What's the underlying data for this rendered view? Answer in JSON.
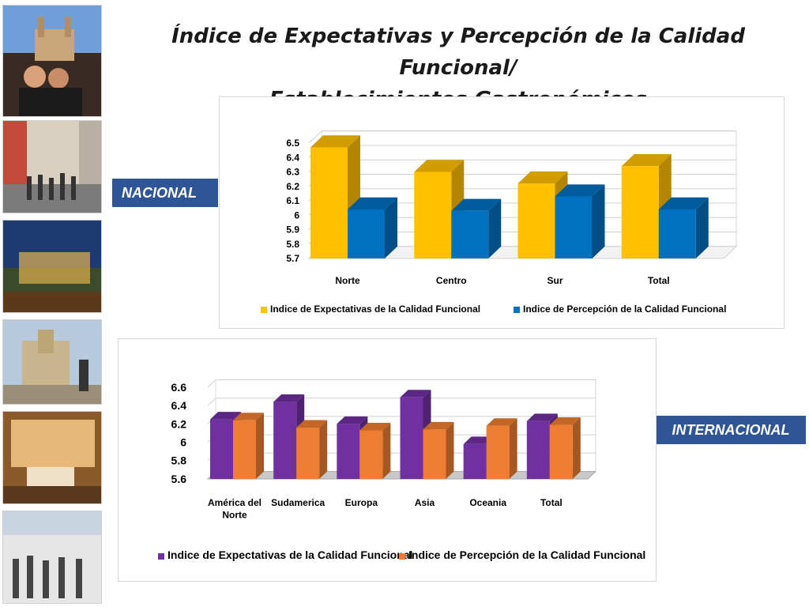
{
  "title": "Índice de Expectativas y Percepción de la Calidad Funcional/ Establecimientos Gastronómicos",
  "title_line1": "Índice de Expectativas y Percepción de la Calidad Funcional/",
  "title_line2": "Establecimientos Gastronómicos",
  "labels": {
    "nacional": "NACIONAL",
    "internacional": "INTERNACIONAL"
  },
  "colors": {
    "accent_label": "#2f5597",
    "series_nac_expect": "#ffc000",
    "series_nac_percep": "#0070c0",
    "series_int_expect": "#7030a0",
    "series_int_percep": "#ed7d31"
  },
  "sidebar_photos": [
    "cathedral-tourists-photo",
    "street-crowd-photo",
    "night-terrace-photo",
    "church-plaza-photo",
    "hotel-room-photo",
    "airport-travelers-photo"
  ],
  "chart_data": [
    {
      "type": "bar",
      "name": "nacional",
      "categories": [
        "Norte",
        "Centro",
        "Sur",
        "Total"
      ],
      "series": [
        {
          "name": "Indice de Expectativas de la Calidad Funcional",
          "values": [
            6.47,
            6.3,
            6.22,
            6.34
          ]
        },
        {
          "name": "Indice de Percepción de la Calidad Funcional",
          "values": [
            6.04,
            6.03,
            6.13,
            6.04
          ]
        }
      ],
      "yticks": [
        "6.5",
        "6.4",
        "6.3",
        "6.2",
        "6.1",
        "6",
        "5.9",
        "5.8",
        "5.7"
      ],
      "ylim": [
        5.7,
        6.5
      ],
      "grid": true,
      "legend": "bottom",
      "three_d": true
    },
    {
      "type": "bar",
      "name": "internacional",
      "categories": [
        "América del Norte",
        "Sudamerica",
        "Europa",
        "Asia",
        "Oceania",
        "Total"
      ],
      "category_lines": [
        [
          "América del",
          "Norte"
        ],
        [
          "Sudamerica"
        ],
        [
          "Europa"
        ],
        [
          "Asia"
        ],
        [
          "Oceania"
        ],
        [
          "Total"
        ]
      ],
      "series": [
        {
          "name": "Indice de Expectativas de la Calidad Funcional",
          "values": [
            6.25,
            6.44,
            6.2,
            6.49,
            5.98,
            6.23
          ]
        },
        {
          "name": "Indice de Percepción de la Calidad Funcional",
          "values": [
            6.24,
            6.16,
            6.13,
            6.14,
            6.18,
            6.19
          ]
        }
      ],
      "yticks": [
        "6.6",
        "6.4",
        "6.2",
        "6",
        "5.8",
        "5.6"
      ],
      "ylim": [
        5.6,
        6.6
      ],
      "grid": true,
      "legend": "bottom",
      "three_d": true
    }
  ]
}
